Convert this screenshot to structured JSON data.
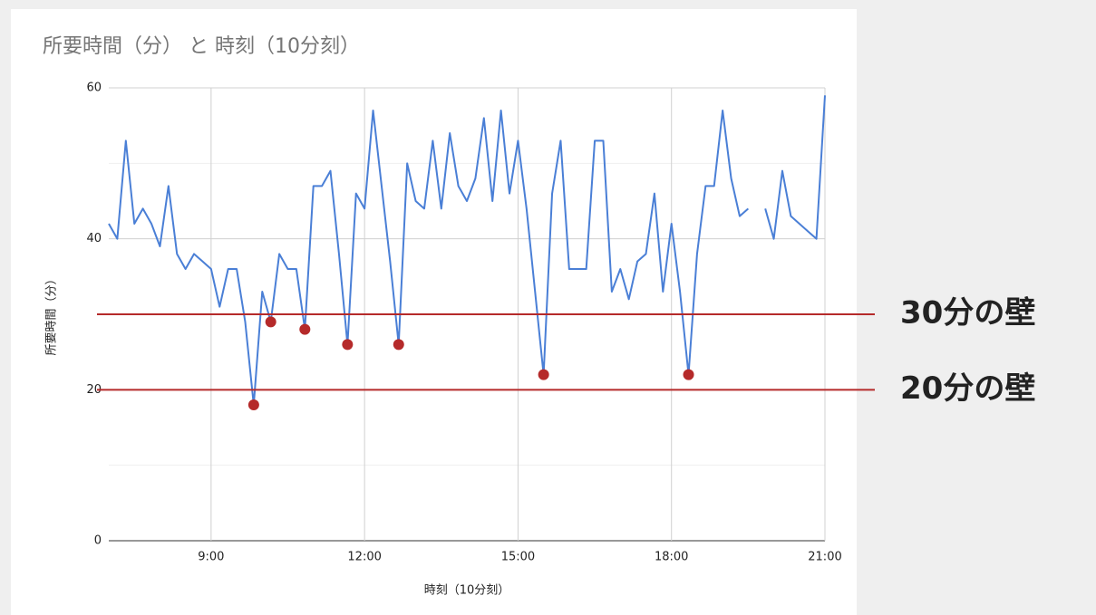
{
  "chart_data": {
    "type": "line",
    "title": "所要時間（分） と 時刻（10分刻）",
    "xlabel": "時刻（10分刻）",
    "ylabel": "所要時間（分）",
    "x": [
      420,
      430,
      440,
      450,
      460,
      470,
      480,
      490,
      500,
      510,
      520,
      530,
      540,
      550,
      560,
      570,
      580,
      590,
      600,
      610,
      620,
      630,
      640,
      650,
      660,
      670,
      680,
      690,
      700,
      710,
      720,
      730,
      740,
      750,
      760,
      770,
      780,
      790,
      800,
      810,
      820,
      830,
      840,
      850,
      860,
      870,
      880,
      890,
      900,
      910,
      920,
      930,
      940,
      950,
      960,
      970,
      980,
      990,
      1000,
      1010,
      1020,
      1030,
      1040,
      1050,
      1060,
      1070,
      1080,
      1090,
      1100,
      1110,
      1120,
      1130,
      1140,
      1150,
      1160,
      1170,
      1180,
      1190,
      1200,
      1210,
      1220,
      1230,
      1240,
      1250,
      1260
    ],
    "series": [
      {
        "name": "所要時間（分）",
        "color": "#4a7fd6",
        "values": [
          42,
          40,
          53,
          42,
          44,
          42,
          39,
          47,
          38,
          36,
          38,
          37,
          36,
          31,
          36,
          36,
          29,
          18,
          33,
          29,
          38,
          36,
          36,
          28,
          47,
          47,
          49,
          38,
          26,
          46,
          44,
          57,
          47,
          37,
          26,
          50,
          45,
          44,
          53,
          44,
          54,
          47,
          45,
          48,
          56,
          45,
          57,
          46,
          53,
          44,
          33,
          22,
          46,
          53,
          36,
          36,
          36,
          53,
          53,
          33,
          36,
          32,
          37,
          38,
          46,
          33,
          42,
          33,
          22,
          38,
          47,
          47,
          57,
          48,
          43,
          44,
          null,
          44,
          40,
          49,
          43,
          42,
          41,
          40,
          59
        ]
      }
    ],
    "highlights": {
      "color": "#b52a2a",
      "x": [
        590,
        610,
        650,
        700,
        760,
        930,
        1100
      ],
      "values": [
        18,
        29,
        28,
        26,
        26,
        22,
        22
      ]
    },
    "reference_lines": [
      {
        "value": 30,
        "label": "30分の壁",
        "color": "#b52a2a"
      },
      {
        "value": 20,
        "label": "20分の壁",
        "color": "#b52a2a"
      }
    ],
    "xlim": [
      420,
      1260
    ],
    "xticks": [
      {
        "value": 540,
        "label": "9:00"
      },
      {
        "value": 720,
        "label": "12:00"
      },
      {
        "value": 900,
        "label": "15:00"
      },
      {
        "value": 1080,
        "label": "18:00"
      },
      {
        "value": 1260,
        "label": "21:00"
      }
    ],
    "ylim": [
      0,
      60
    ],
    "yticks": [
      0,
      20,
      40,
      60
    ],
    "y_minor_ticks": [
      10,
      30,
      50
    ],
    "grid": true
  }
}
